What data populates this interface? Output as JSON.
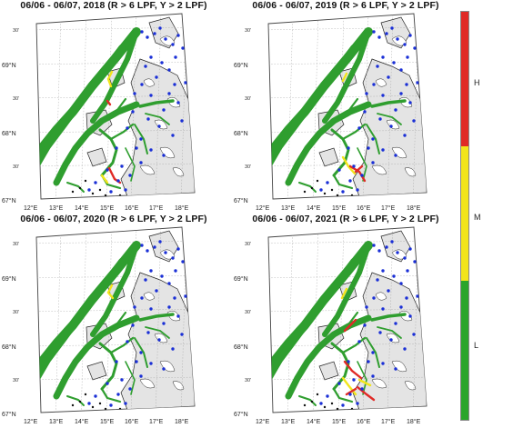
{
  "panels": [
    {
      "title": "06/06 - 06/07, 2018 (R > 6 LPF, Y > 2 LPF)",
      "variant": 0
    },
    {
      "title": "06/06 - 06/07, 2019 (R > 6 LPF, Y > 2 LPF)",
      "variant": 1
    },
    {
      "title": "06/06 - 06/07, 2020 (R > 6 LPF, Y > 2 LPF)",
      "variant": 2
    },
    {
      "title": "06/06 - 06/07, 2021 (R > 6 LPF, Y > 2 LPF)",
      "variant": 3
    }
  ],
  "axes": {
    "lat_labels": [
      "69°N",
      "68°N",
      "67°N"
    ],
    "lat_minute_labels": [
      "30'",
      "30'",
      "30'"
    ],
    "lon_labels": [
      "12°E",
      "13°E",
      "14°E",
      "15°E",
      "16°E",
      "17°E",
      "18°E"
    ]
  },
  "colorbar": {
    "labels": [
      "H",
      "M",
      "L"
    ],
    "colors": {
      "high": "#e02a26",
      "medium": "#f2e51b",
      "low": "#2aa52a"
    }
  },
  "map_colors": {
    "sea": "#ffffff",
    "land": "#e4e4e4",
    "coast": "#222222",
    "route": "#2f9e2f",
    "station": "#1a2fd6",
    "station_dark": "#111111",
    "high": "#e02a26",
    "medium": "#f2e51b"
  }
}
